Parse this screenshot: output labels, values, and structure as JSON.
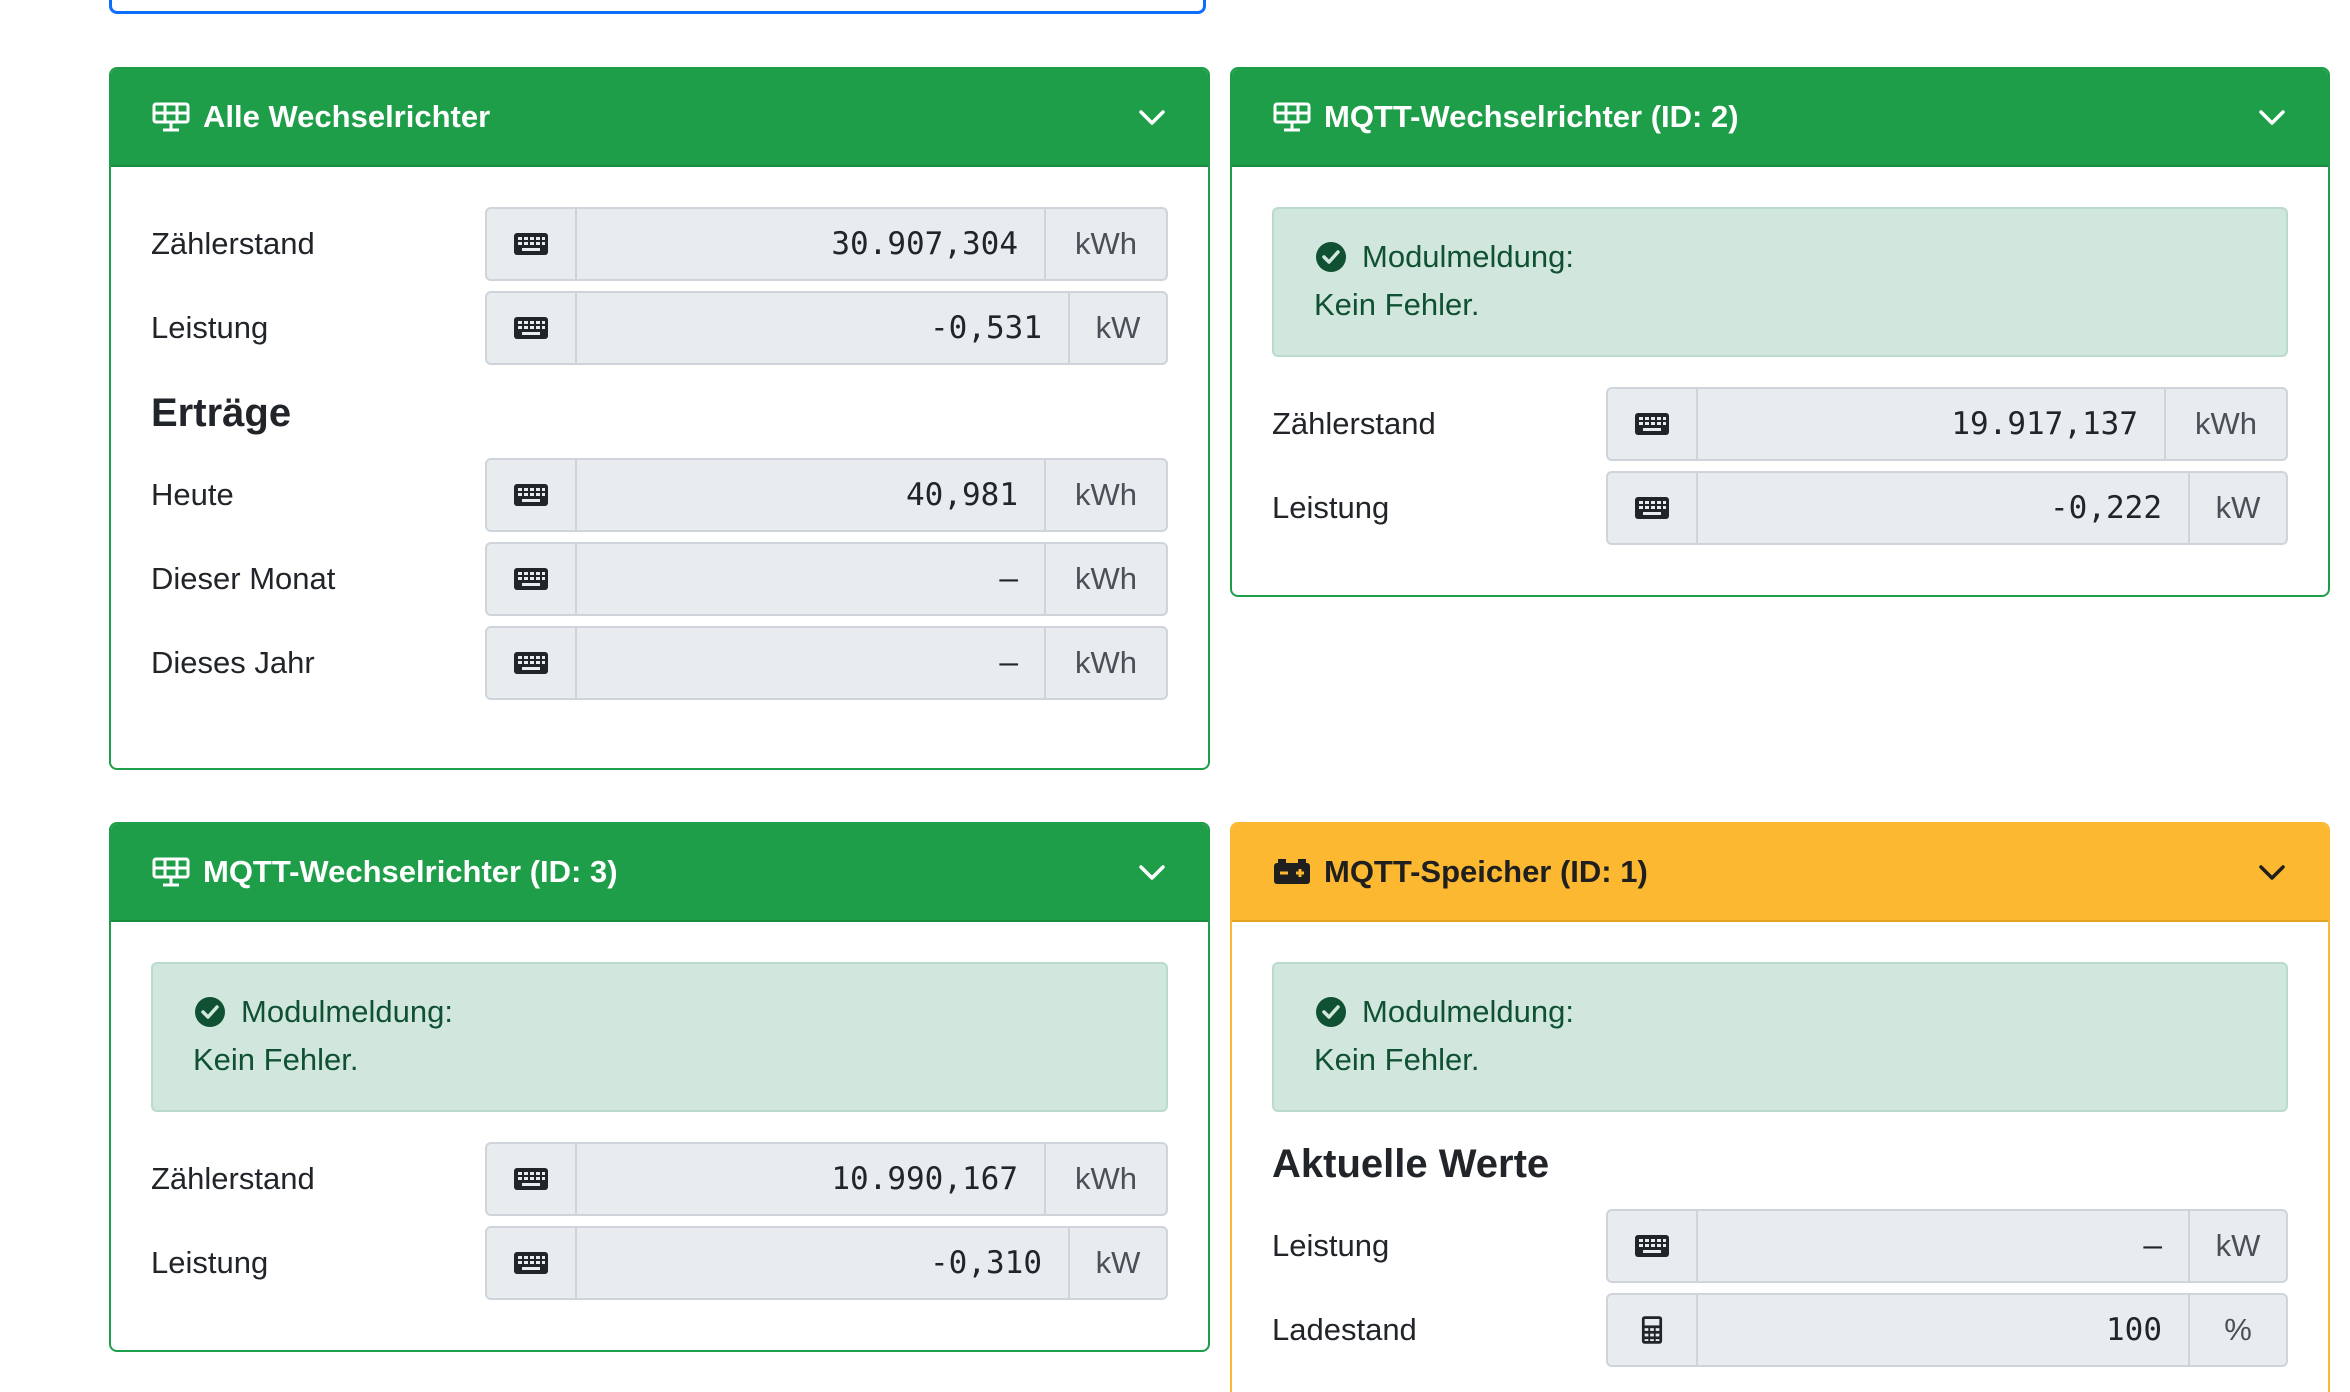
{
  "cards": [
    {
      "title": "Alle Wechselrichter",
      "rows": [
        {
          "label": "Zählerstand",
          "value": "30.907,304",
          "unit": "kWh"
        },
        {
          "label": "Leistung",
          "value": "-0,531",
          "unit": "kW"
        }
      ],
      "section": "Erträge",
      "section_rows": [
        {
          "label": "Heute",
          "value": "40,981",
          "unit": "kWh"
        },
        {
          "label": "Dieser Monat",
          "value": "–",
          "unit": "kWh"
        },
        {
          "label": "Dieses Jahr",
          "value": "–",
          "unit": "kWh"
        }
      ]
    },
    {
      "title": "MQTT-Wechselrichter (ID: 2)",
      "alert": {
        "line1": "Modulmeldung:",
        "line2": "Kein Fehler."
      },
      "rows": [
        {
          "label": "Zählerstand",
          "value": "19.917,137",
          "unit": "kWh"
        },
        {
          "label": "Leistung",
          "value": "-0,222",
          "unit": "kW"
        }
      ]
    },
    {
      "title": "MQTT-Wechselrichter (ID: 3)",
      "alert": {
        "line1": "Modulmeldung:",
        "line2": "Kein Fehler."
      },
      "rows": [
        {
          "label": "Zählerstand",
          "value": "10.990,167",
          "unit": "kWh"
        },
        {
          "label": "Leistung",
          "value": "-0,310",
          "unit": "kW"
        }
      ]
    },
    {
      "title": "MQTT-Speicher (ID: 1)",
      "alert": {
        "line1": "Modulmeldung:",
        "line2": "Kein Fehler."
      },
      "section": "Aktuelle Werte",
      "section_rows": [
        {
          "label": "Leistung",
          "value": "–",
          "unit": "kW"
        },
        {
          "label": "Ladestand",
          "value": "100",
          "unit": "%"
        }
      ]
    }
  ],
  "icons": {
    "solar": "solar-panel-icon",
    "battery": "car-battery-icon",
    "chevron": "chevron-down-icon",
    "keyboard": "keyboard-icon",
    "calculator": "calculator-icon",
    "check": "check-circle-icon"
  },
  "colors": {
    "success": "#1e9e48",
    "warning": "#fbb830",
    "alert_bg": "#d1e7dd",
    "alert_text": "#0f5132"
  }
}
